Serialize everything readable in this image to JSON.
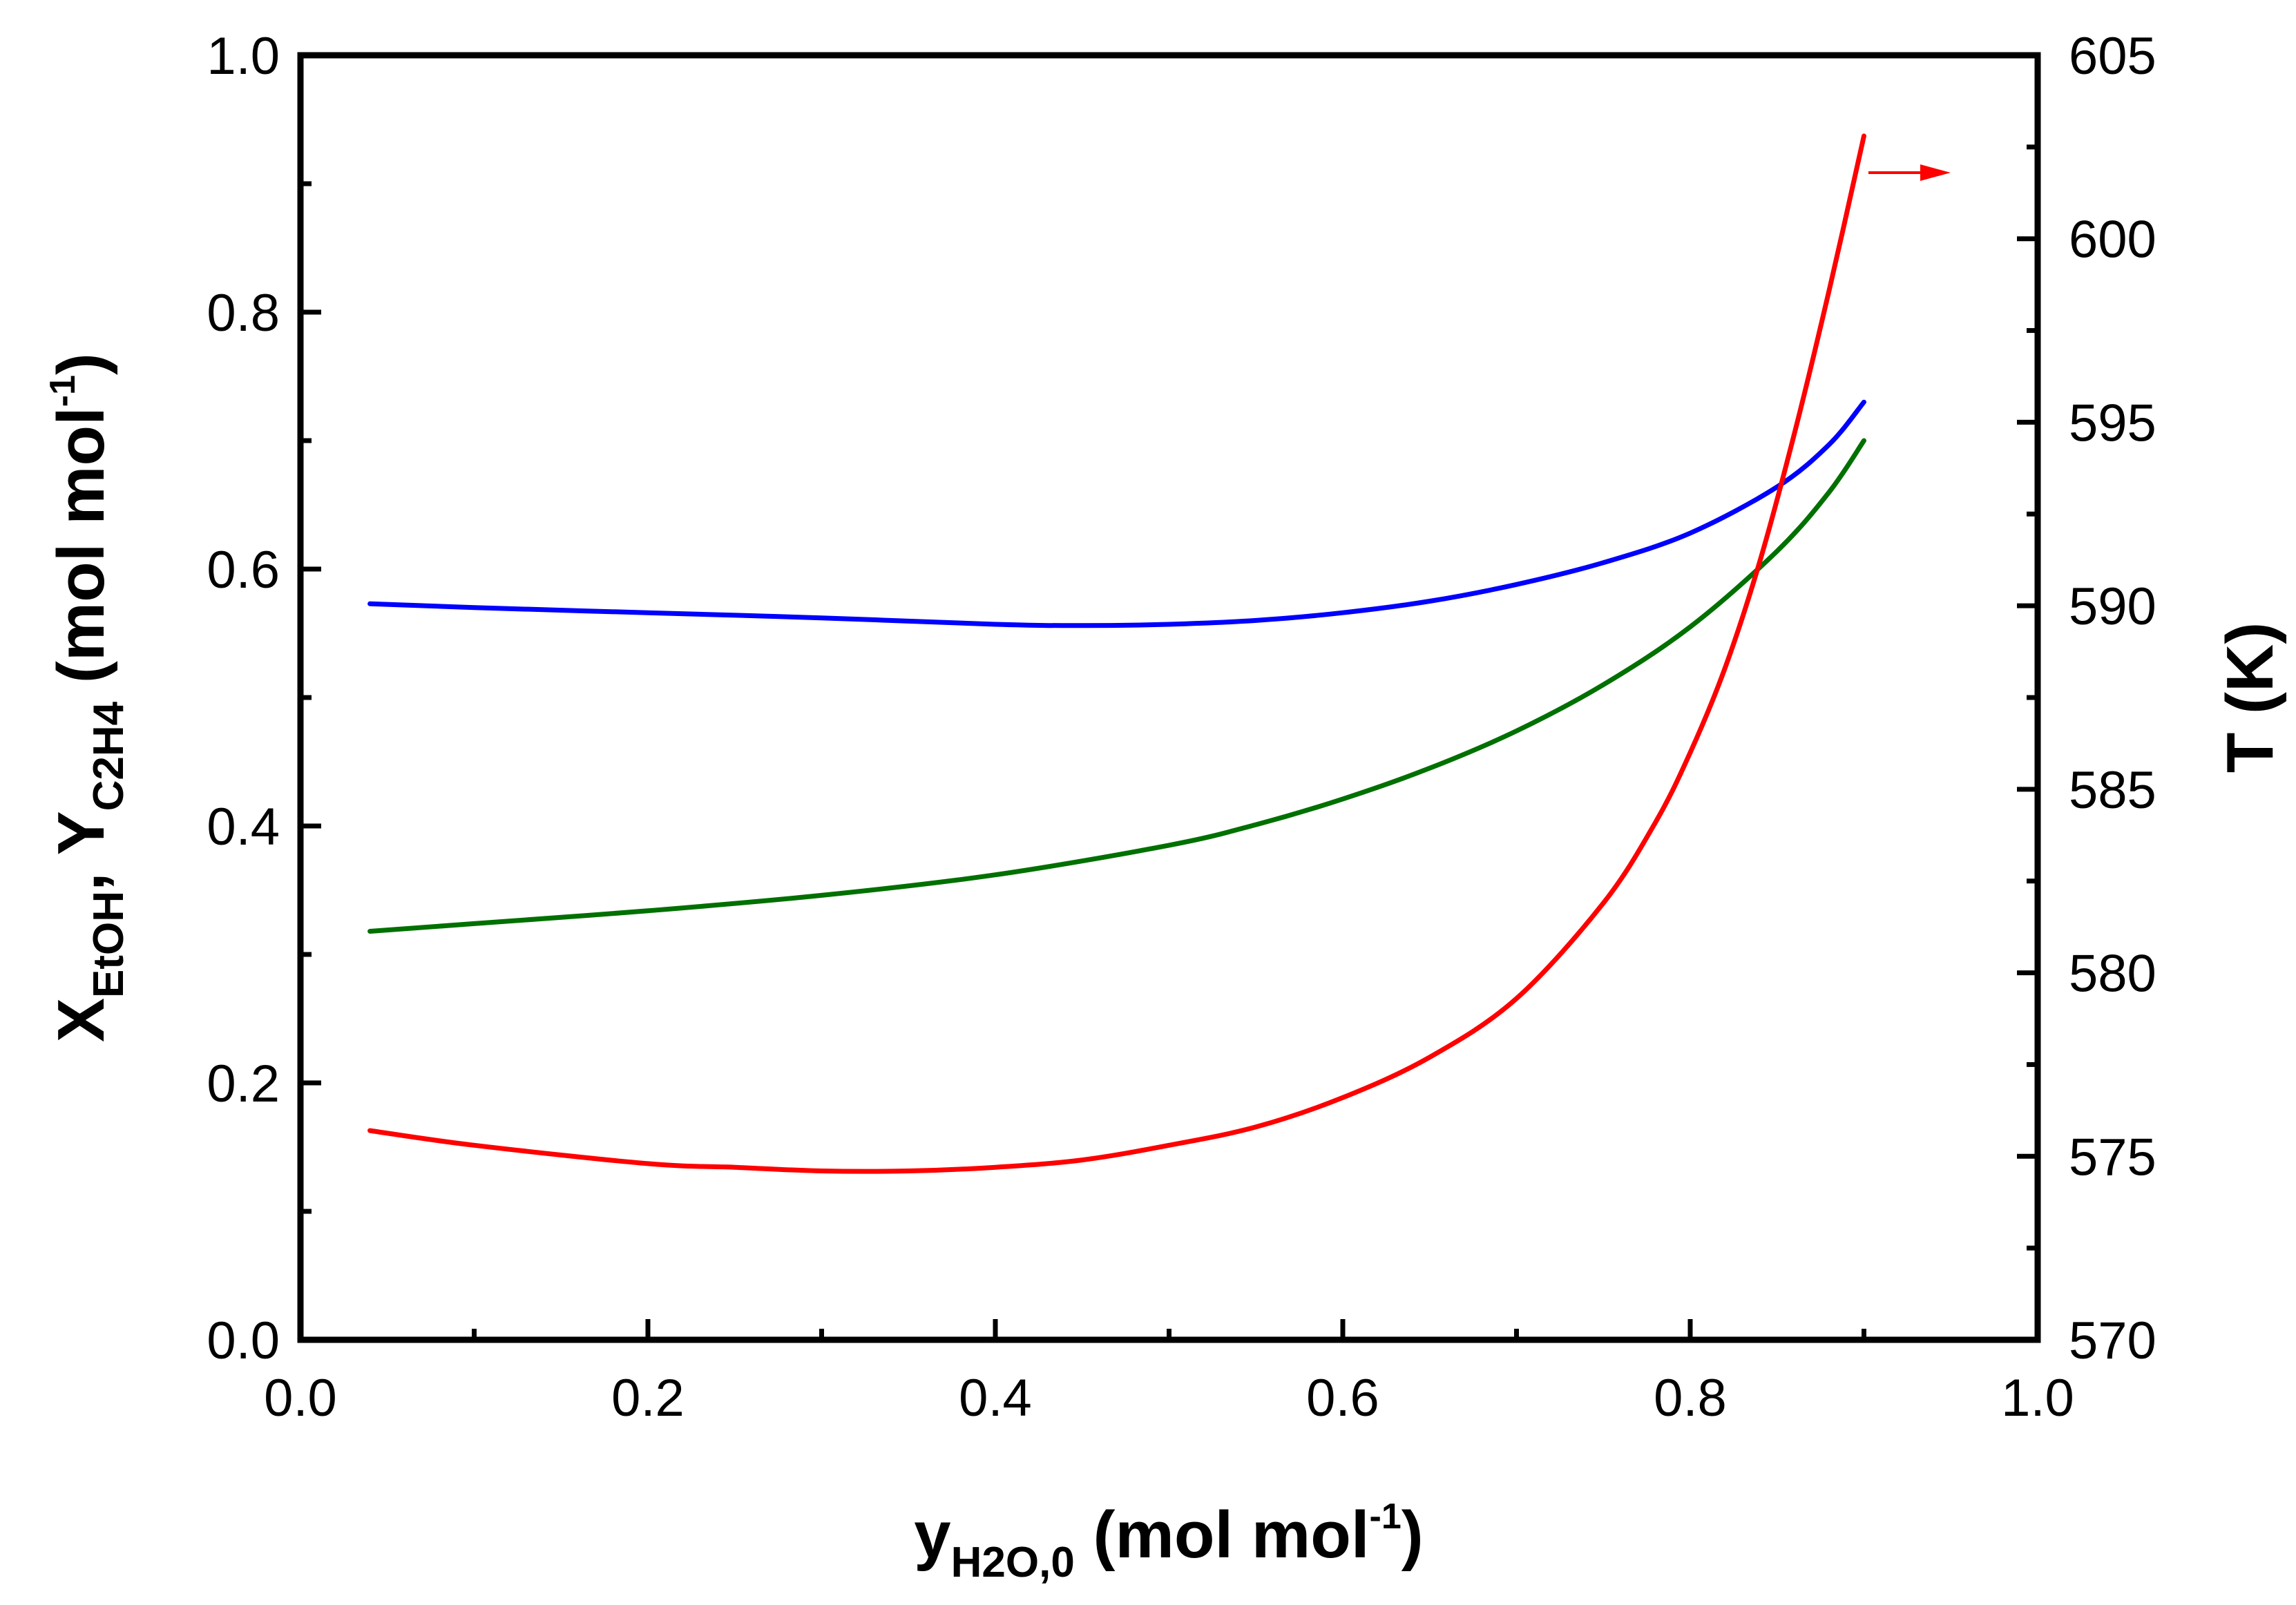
{
  "chart_data": {
    "type": "line",
    "title": "",
    "x": {
      "label": "y",
      "label_subscript": "H2O,0",
      "label_unit_prefix": " (mol mol",
      "label_unit_sup": "-1",
      "label_unit_suffix": ")",
      "range": [
        0.0,
        1.0
      ],
      "ticks": [
        "0.0",
        "0.2",
        "0.4",
        "0.6",
        "0.8",
        "1.0"
      ]
    },
    "y_left": {
      "label_x": "X",
      "label_x_sub": "EtOH",
      "label_sep": ", ",
      "label_y": "Y",
      "label_y_sub": "C2H4",
      "label_unit_prefix": " (mol mol",
      "label_unit_sup": "-1",
      "label_unit_suffix": ")",
      "range": [
        0.0,
        1.0
      ],
      "ticks": [
        "0.0",
        "0.2",
        "0.4",
        "0.6",
        "0.8",
        "1.0"
      ]
    },
    "y_right": {
      "label": "T (K)",
      "range": [
        570,
        605
      ],
      "ticks": [
        "570",
        "575",
        "580",
        "585",
        "590",
        "595",
        "600",
        "605"
      ]
    },
    "series": [
      {
        "name": "X_EtOH",
        "color": "#0000ff",
        "axis": "left",
        "x": [
          0.04,
          0.1,
          0.2,
          0.3,
          0.4,
          0.45,
          0.5,
          0.55,
          0.6,
          0.65,
          0.7,
          0.75,
          0.8,
          0.85,
          0.88,
          0.9
        ],
        "y": [
          0.573,
          0.57,
          0.566,
          0.562,
          0.557,
          0.556,
          0.557,
          0.56,
          0.566,
          0.575,
          0.588,
          0.605,
          0.628,
          0.664,
          0.697,
          0.73
        ]
      },
      {
        "name": "Y_C2H4",
        "color": "#007000",
        "axis": "left",
        "x": [
          0.04,
          0.1,
          0.2,
          0.3,
          0.4,
          0.5,
          0.55,
          0.6,
          0.65,
          0.7,
          0.75,
          0.8,
          0.85,
          0.88,
          0.9
        ],
        "y": [
          0.318,
          0.324,
          0.334,
          0.346,
          0.362,
          0.385,
          0.401,
          0.421,
          0.445,
          0.474,
          0.51,
          0.555,
          0.614,
          0.66,
          0.7
        ]
      },
      {
        "name": "T",
        "color": "#ff0000",
        "axis": "right",
        "x": [
          0.04,
          0.1,
          0.2,
          0.25,
          0.3,
          0.35,
          0.4,
          0.45,
          0.5,
          0.55,
          0.6,
          0.65,
          0.7,
          0.75,
          0.78,
          0.8,
          0.82,
          0.84,
          0.86,
          0.88,
          0.9
        ],
        "y": [
          575.7,
          575.3,
          574.8,
          574.7,
          574.6,
          574.6,
          574.7,
          574.9,
          575.3,
          575.8,
          576.6,
          577.7,
          579.3,
          581.9,
          584.1,
          586.0,
          588.3,
          591.2,
          594.7,
          598.6,
          602.8
        ]
      }
    ],
    "annotation": {
      "type": "arrow",
      "points_to": "right axis",
      "color": "#ff0000"
    }
  }
}
